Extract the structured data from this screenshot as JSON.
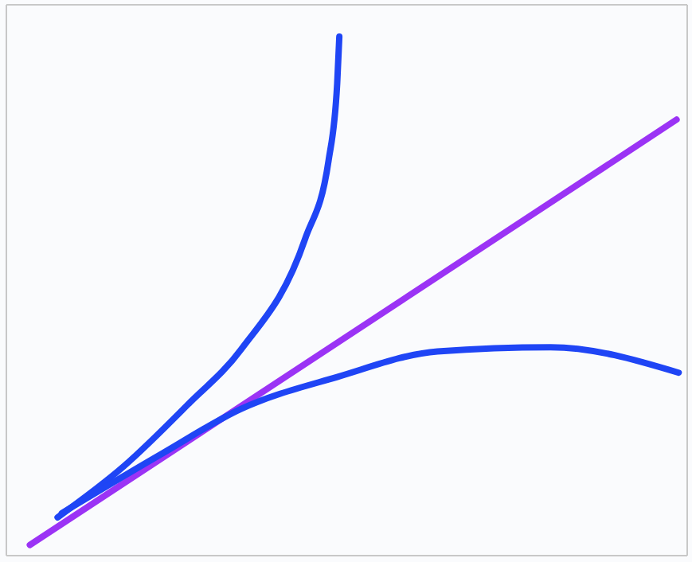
{
  "chart_data": {
    "type": "line",
    "xlim": [
      -0.55,
      2.64
    ],
    "ylim": [
      -0.79,
      1.8
    ],
    "xticks": [
      0,
      1,
      2
    ],
    "yticks": [
      0,
      1
    ],
    "grid": true,
    "tick_labels": false,
    "series": [
      {
        "color": "#1f45f5",
        "x": [
          -0.31,
          0.0,
          0.3,
          0.55,
          0.85,
          0.96,
          1.0,
          1.01
        ],
        "values": [
          -0.61,
          -0.37,
          -0.08,
          0.18,
          0.7,
          1.07,
          1.43,
          1.65
        ]
      },
      {
        "color": "#9b33f5",
        "x": [
          -0.44,
          2.59
        ],
        "values": [
          -0.74,
          1.26
        ]
      },
      {
        "color": "#1f45f5",
        "x": [
          -0.29,
          0.18,
          0.55,
          1.0,
          1.47,
          2.0,
          2.6
        ],
        "values": [
          -0.59,
          -0.31,
          -0.1,
          0.05,
          0.17,
          0.19,
          0.07
        ]
      }
    ]
  }
}
